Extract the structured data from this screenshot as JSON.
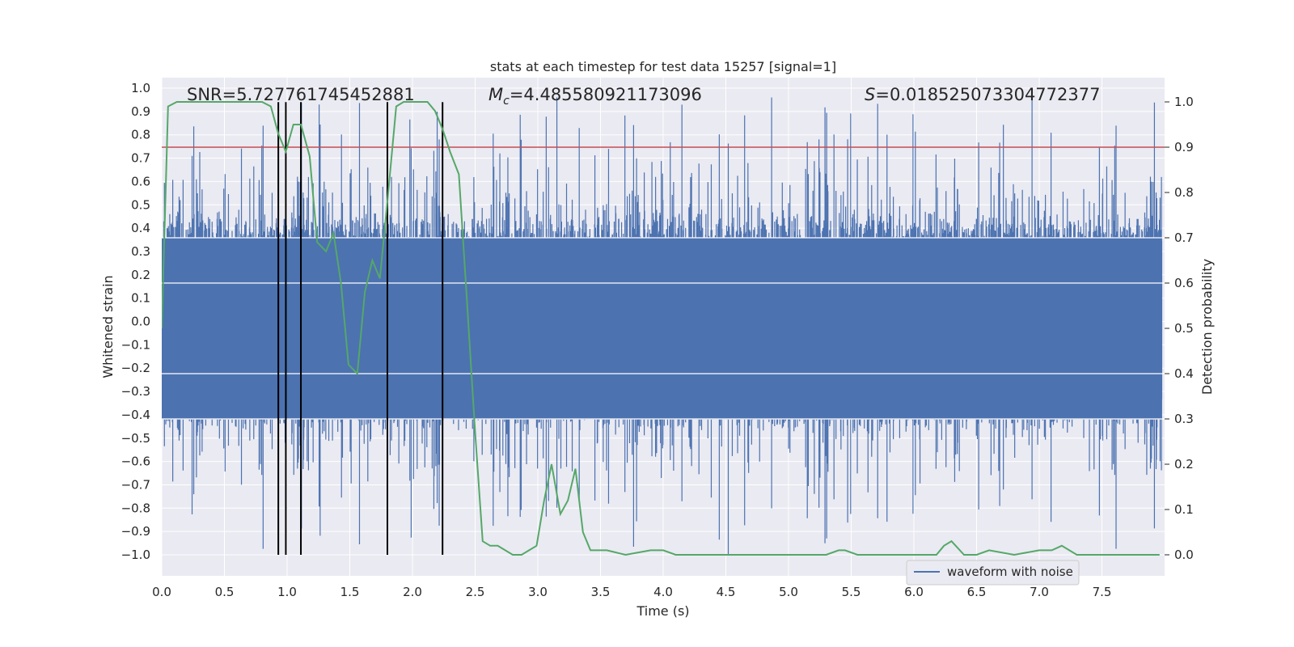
{
  "chart_data": {
    "type": "line",
    "title": "stats at each timestep for test data 15257 [signal=1]",
    "xlabel": "Time (s)",
    "ylabel": "Whitened strain",
    "y2label": "Detection probability",
    "xlim": [
      0,
      8
    ],
    "ylim": [
      -1.1,
      1.05
    ],
    "y2lim": [
      -0.05,
      1.03
    ],
    "grid": true,
    "x_ticks": [
      0.0,
      0.5,
      1.0,
      1.5,
      2.0,
      2.5,
      3.0,
      3.5,
      4.0,
      4.5,
      5.0,
      5.5,
      6.0,
      6.5,
      7.0,
      7.5
    ],
    "x_tick_labels": [
      "0.0",
      "0.5",
      "1.0",
      "1.5",
      "2.0",
      "2.5",
      "3.0",
      "3.5",
      "4.0",
      "4.5",
      "5.0",
      "5.5",
      "6.0",
      "6.5",
      "7.0",
      "7.5"
    ],
    "y_ticks": [
      1.0,
      0.9,
      0.8,
      0.7,
      0.6,
      0.5,
      0.4,
      0.3,
      0.2,
      0.1,
      0.0,
      -0.1,
      -0.2,
      -0.3,
      -0.4,
      -0.5,
      -0.6,
      -0.7,
      -0.8,
      -0.9,
      -1.0
    ],
    "y_tick_labels": [
      "1.0",
      "0.9",
      "0.8",
      "0.7",
      "0.6",
      "0.5",
      "0.4",
      "0.3",
      "0.2",
      "0.1",
      "0.0",
      "−0.1",
      "−0.2",
      "−0.3",
      "−0.4",
      "−0.5",
      "−0.6",
      "−0.7",
      "−0.8",
      "−0.9",
      "−1.0"
    ],
    "y2_ticks": [
      1.0,
      0.9,
      0.8,
      0.7,
      0.6,
      0.5,
      0.4,
      0.3,
      0.2,
      0.1,
      0.0
    ],
    "y2_tick_labels": [
      "1.0",
      "0.9",
      "0.8",
      "0.7",
      "0.6",
      "0.5",
      "0.4",
      "0.3",
      "0.2",
      "0.1",
      "0.0"
    ],
    "annotations": {
      "snr": "SNR=5.727761745452881",
      "mc_symbol": "M",
      "mc_sub": "c",
      "mc_value": "=4.485580921173096",
      "s_symbol": "S",
      "s_value": "=0.018525073304772377"
    },
    "legend": {
      "label": "waveform with noise",
      "loc": "lower right"
    },
    "threshold_y2": 0.9,
    "vertical_markers_x": [
      0.93,
      0.99,
      1.11,
      1.8,
      2.24
    ],
    "waveform": {
      "name": "waveform with noise",
      "description_note": "dense noisy strain, approx 8000 samples over 8 s",
      "core_amplitude": 0.42,
      "peak_amplitude": 0.94
    },
    "probability": {
      "name": "Detection probability",
      "x": [
        0.0,
        0.05,
        0.12,
        0.3,
        0.5,
        0.7,
        0.8,
        0.87,
        0.93,
        0.99,
        1.05,
        1.11,
        1.18,
        1.24,
        1.31,
        1.37,
        1.43,
        1.49,
        1.56,
        1.62,
        1.68,
        1.74,
        1.8,
        1.87,
        1.93,
        2.0,
        2.12,
        2.18,
        2.24,
        2.3,
        2.37,
        2.43,
        2.5,
        2.56,
        2.62,
        2.68,
        2.74,
        2.8,
        2.87,
        2.93,
        2.99,
        3.05,
        3.11,
        3.18,
        3.24,
        3.3,
        3.36,
        3.42,
        3.55,
        3.7,
        3.9,
        4.0,
        4.1,
        4.3,
        4.5,
        4.7,
        5.0,
        5.3,
        5.4,
        5.45,
        5.55,
        5.6,
        5.8,
        6.0,
        6.1,
        6.18,
        6.24,
        6.3,
        6.4,
        6.5,
        6.6,
        6.8,
        7.0,
        7.1,
        7.18,
        7.3,
        7.5,
        7.7,
        7.9,
        7.96
      ],
      "y": [
        0.5,
        0.99,
        1.0,
        1.0,
        1.0,
        1.0,
        1.0,
        0.99,
        0.93,
        0.89,
        0.95,
        0.95,
        0.88,
        0.69,
        0.67,
        0.71,
        0.6,
        0.42,
        0.4,
        0.58,
        0.65,
        0.61,
        0.78,
        0.99,
        1.0,
        1.0,
        1.0,
        0.98,
        0.94,
        0.89,
        0.84,
        0.58,
        0.27,
        0.03,
        0.02,
        0.02,
        0.01,
        0.0,
        0.0,
        0.01,
        0.02,
        0.12,
        0.2,
        0.09,
        0.12,
        0.19,
        0.05,
        0.01,
        0.01,
        0.0,
        0.01,
        0.01,
        0.0,
        0.0,
        0.0,
        0.0,
        0.0,
        0.0,
        0.01,
        0.01,
        0.0,
        0.0,
        0.0,
        0.0,
        0.0,
        0.0,
        0.02,
        0.03,
        0.0,
        0.0,
        0.01,
        0.0,
        0.01,
        0.01,
        0.02,
        0.0,
        0.0,
        0.0,
        0.0,
        0.0
      ]
    },
    "colors": {
      "background": "#eaeaf2",
      "grid": "#ffffff",
      "waveform": "#4c72b0",
      "probability": "#55a868",
      "threshold": "#c44e52",
      "markers": "#000000"
    }
  }
}
